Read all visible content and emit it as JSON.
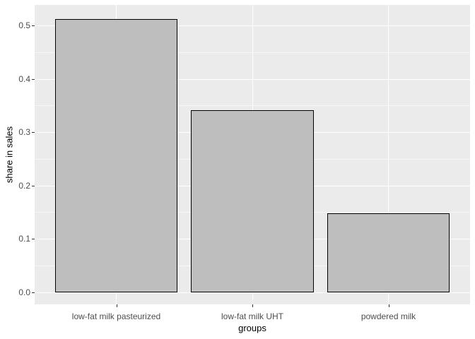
{
  "figure": {
    "background_color": "#FFFFFF"
  },
  "chart_data": {
    "type": "bar",
    "title": "",
    "categories": [
      "low-fat milk pasteurized",
      "low-fat milk UHT",
      "powdered milk"
    ],
    "values": [
      0.512,
      0.341,
      0.148
    ],
    "xlabel": "groups",
    "ylabel": "share in sales",
    "ylim": [
      -0.023,
      0.538
    ],
    "ytick_values": [
      0.0,
      0.1,
      0.2,
      0.3,
      0.4,
      0.5
    ],
    "ytick_labels": [
      "0.0",
      "0.1",
      "0.2",
      "0.3",
      "0.4",
      "0.5"
    ],
    "minor_ytick_values": [
      0.05,
      0.15,
      0.25,
      0.35,
      0.45
    ],
    "grid": "on",
    "legend": "none",
    "colors": {
      "panel_bg": "#EBEBEB",
      "bar_fill": "#BEBEBE",
      "bar_stroke": "#000000",
      "grid_major": "#FFFFFF",
      "grid_minor": "rgba(255,255,255,0.6)",
      "tick_mark": "#333333",
      "tick_label": "#4D4D4D",
      "axis_title": "#000000"
    }
  }
}
